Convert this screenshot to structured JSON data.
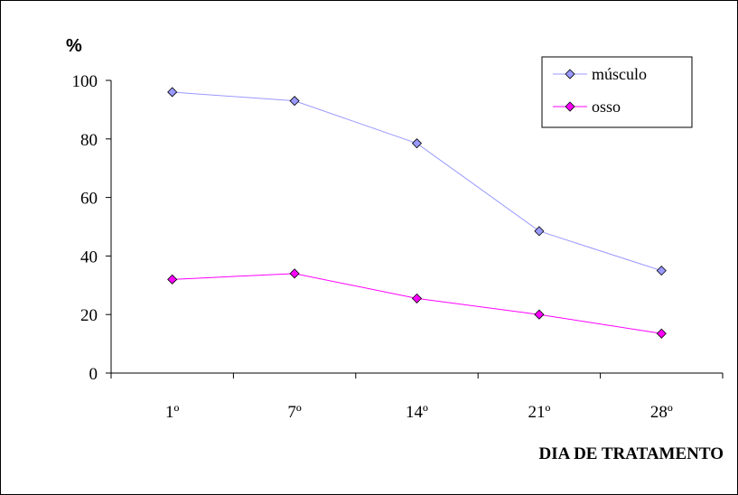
{
  "chart_data": {
    "type": "line",
    "title": "",
    "ylabel": "%",
    "xlabel": "DIA DE TRATAMENTO",
    "categories": [
      "1º",
      "7º",
      "14º",
      "21º",
      "28º"
    ],
    "ylim": [
      0,
      100
    ],
    "yticks": [
      0,
      20,
      40,
      60,
      80,
      100
    ],
    "grid": false,
    "legend_position": "top-right",
    "series": [
      {
        "name": "músculo",
        "values": [
          96,
          93,
          78.5,
          48.5,
          35
        ],
        "color": "#9999ff",
        "marker_color": "#9999ff",
        "line_color": "#9999ff"
      },
      {
        "name": "osso",
        "values": [
          32,
          34,
          25.5,
          20,
          13.5
        ],
        "color": "#ff00ff",
        "marker_color": "#ff00ff",
        "line_color": "#ff00ff"
      }
    ]
  }
}
